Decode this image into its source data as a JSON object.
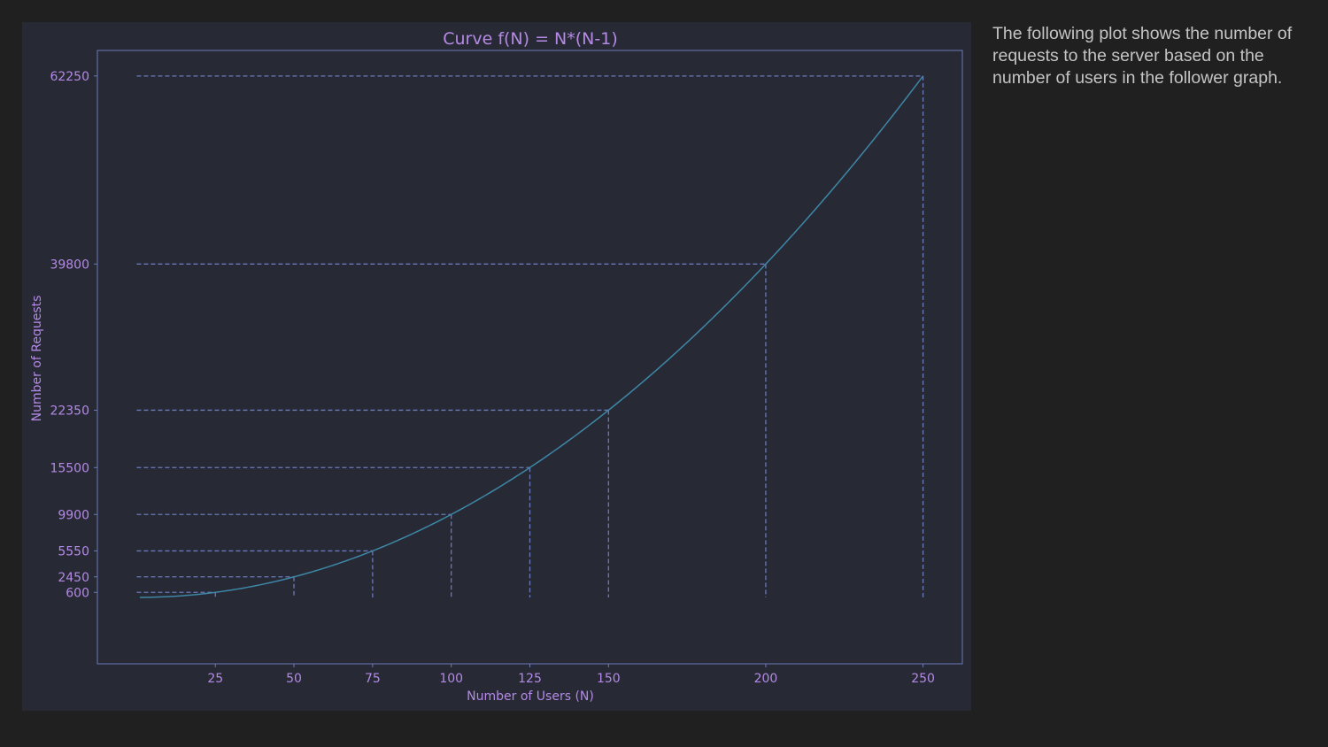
{
  "description": "The following plot shows the number of requests to the server based on the number of users in the follower graph.",
  "colors": {
    "page_background": "#202020",
    "figure_background": "#272935",
    "text": "#b48ae6",
    "axes_frame": "#6b7ab8",
    "guide_lines": "#6b7ab8",
    "curve": "#3e87a6",
    "description_text": "#c4c4c4"
  },
  "chart_data": {
    "type": "line",
    "title": "Curve f(N) = N*(N-1)",
    "xlabel": "Number of Users (N)",
    "ylabel": "Number of Requests",
    "xlim": [
      -12.5,
      262.5
    ],
    "ylim": [
      -7930,
      65300
    ],
    "x_ticks": [
      25,
      50,
      75,
      100,
      125,
      150,
      200,
      250
    ],
    "y_ticks": [
      600,
      2450,
      5550,
      9900,
      15500,
      22350,
      39800,
      62250
    ],
    "grid": false,
    "legend": "none",
    "series": [
      {
        "function": "N*(N-1)",
        "x_range": [
          1,
          250
        ],
        "points": [
          {
            "x": 1,
            "y": 0
          },
          {
            "x": 25,
            "y": 600
          },
          {
            "x": 50,
            "y": 2450
          },
          {
            "x": 75,
            "y": 5550
          },
          {
            "x": 100,
            "y": 9900
          },
          {
            "x": 125,
            "y": 15500
          },
          {
            "x": 150,
            "y": 22350
          },
          {
            "x": 200,
            "y": 39800
          },
          {
            "x": 250,
            "y": 62250
          }
        ]
      }
    ],
    "guide_points": [
      {
        "x": 25,
        "y": 600
      },
      {
        "x": 50,
        "y": 2450
      },
      {
        "x": 75,
        "y": 5550
      },
      {
        "x": 100,
        "y": 9900
      },
      {
        "x": 125,
        "y": 15500
      },
      {
        "x": 150,
        "y": 22350
      },
      {
        "x": 200,
        "y": 39800
      },
      {
        "x": 250,
        "y": 62250
      }
    ]
  }
}
